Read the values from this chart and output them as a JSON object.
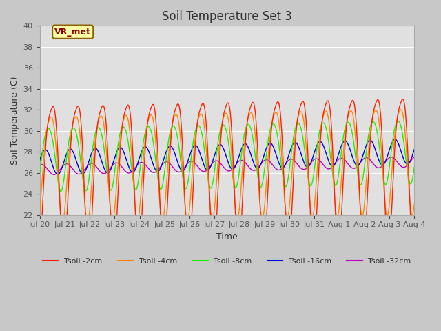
{
  "title": "Soil Temperature Set 3",
  "xlabel": "Time",
  "ylabel": "Soil Temperature (C)",
  "ylim": [
    22,
    40
  ],
  "yticks": [
    22,
    24,
    26,
    28,
    30,
    32,
    34,
    36,
    38,
    40
  ],
  "bg_color": "#c8c8c8",
  "plot_bg_color": "#e0e0e0",
  "grid_color": "#ffffff",
  "colors": {
    "2cm": "#ff2200",
    "4cm": "#ff8800",
    "8cm": "#22ee00",
    "16cm": "#0000dd",
    "32cm": "#bb00bb"
  },
  "legend_labels": [
    "Tsoil -2cm",
    "Tsoil -4cm",
    "Tsoil -8cm",
    "Tsoil -16cm",
    "Tsoil -32cm"
  ],
  "annotation_text": "VR_met",
  "title_fontsize": 12,
  "label_fontsize": 9,
  "tick_fontsize": 8
}
